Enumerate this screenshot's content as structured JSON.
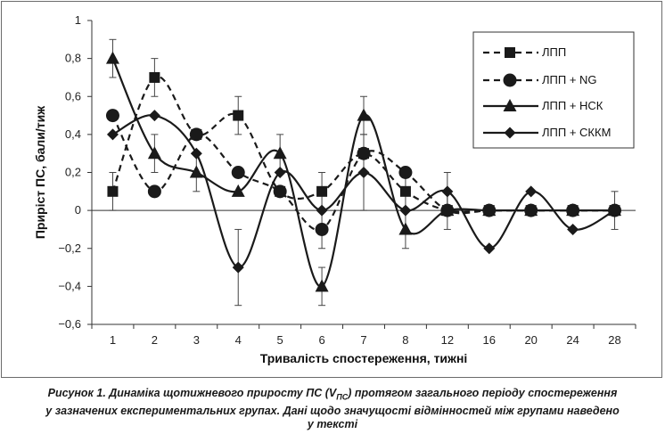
{
  "chart_data": {
    "type": "line",
    "xlabel": "Тривалість спостереження, тижні",
    "ylabel": "Приріст ПС, бали/тиж",
    "ylim": [
      -0.6,
      1
    ],
    "y_ticks": [
      "−0,6",
      "−0,4",
      "−0,2",
      "0",
      "0,2",
      "0,4",
      "0,6",
      "0,8",
      "1"
    ],
    "y_tick_values": [
      -0.6,
      -0.4,
      -0.2,
      0,
      0.2,
      0.4,
      0.6,
      0.8,
      1
    ],
    "categories": [
      "1",
      "2",
      "3",
      "4",
      "5",
      "6",
      "7",
      "8",
      "12",
      "16",
      "20",
      "24",
      "28"
    ],
    "grid": false,
    "legend_position": "top-right",
    "series": [
      {
        "name": "ЛПП",
        "marker": "square",
        "dash": true,
        "smooth": true,
        "values": [
          0.1,
          0.7,
          0.4,
          0.5,
          0.1,
          0.1,
          0.3,
          0.1,
          0,
          0,
          0,
          0,
          0
        ],
        "errors": [
          0.1,
          0.1,
          0,
          0.1,
          0,
          0.1,
          0,
          0.1,
          0,
          0,
          0,
          0,
          0.1
        ]
      },
      {
        "name": "ЛПП + NG",
        "marker": "circle",
        "dash": true,
        "smooth": true,
        "values": [
          0.5,
          0.1,
          0.4,
          0.2,
          0.1,
          -0.1,
          0.3,
          0.2,
          0,
          0,
          0,
          0,
          0
        ],
        "errors": [
          0,
          0,
          0,
          0,
          0,
          0.1,
          0,
          0,
          0,
          0,
          0,
          0,
          0
        ]
      },
      {
        "name": "ЛПП + НСК",
        "marker": "triangle",
        "dash": false,
        "smooth": true,
        "values": [
          0.8,
          0.3,
          0.2,
          0.1,
          0.3,
          -0.4,
          0.5,
          -0.1,
          0,
          0,
          0,
          0,
          0
        ],
        "errors": [
          0.1,
          0.1,
          0.1,
          0,
          0.1,
          0.1,
          0.1,
          0.1,
          0.1,
          0,
          0,
          0,
          0
        ]
      },
      {
        "name": "ЛПП + СККМ",
        "marker": "diamond",
        "dash": false,
        "smooth": true,
        "values": [
          0.4,
          0.5,
          0.3,
          -0.3,
          0.2,
          0,
          0.2,
          0,
          0.1,
          -0.2,
          0.1,
          -0.1,
          0
        ],
        "errors": [
          0,
          0,
          0,
          0.2,
          0,
          0,
          0.2,
          0,
          0.1,
          0,
          0,
          0,
          0
        ]
      }
    ]
  },
  "caption": {
    "line1": "Рисунок 1. Динаміка щотижневого приросту ПС (V",
    "sub": "ПС",
    "line1_end": ") протягом загального періоду спостереження",
    "line2": "у зазначених експериментальних групах. Дані щодо значущості відмінностей між групами наведено",
    "line3": "у тексті"
  }
}
